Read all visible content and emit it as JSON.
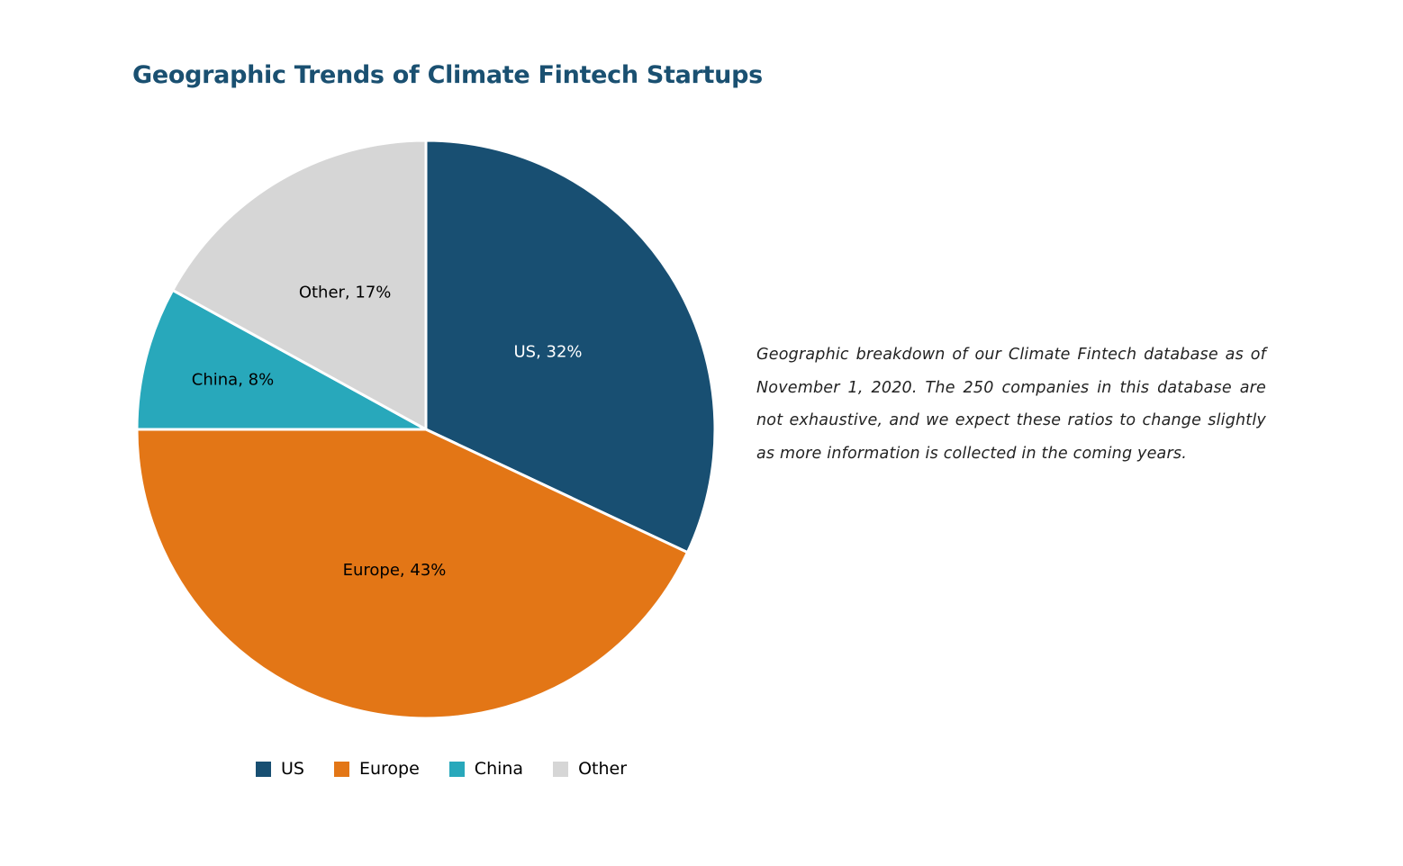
{
  "chart_data": {
    "type": "pie",
    "title": "Geographic Trends of Climate Fintech Startups",
    "categories": [
      "US",
      "Europe",
      "China",
      "Other"
    ],
    "values": [
      32,
      43,
      8,
      17
    ],
    "unit": "%",
    "slice_labels": [
      "US, 32%",
      "Europe, 43%",
      "China, 8%",
      "Other, 17%"
    ],
    "colors": [
      "#184f72",
      "#e37616",
      "#28a8bb",
      "#d6d6d6"
    ],
    "label_colors": [
      "#ffffff",
      "#000000",
      "#000000",
      "#000000"
    ],
    "start": "12 o'clock",
    "direction": "clockwise",
    "legend": {
      "position": "bottom",
      "entries": [
        "US",
        "Europe",
        "China",
        "Other"
      ]
    }
  },
  "caption": "Geographic breakdown of our Climate Fintech database as of November 1, 2020. The 250 companies in this database are not exhaustive, and we expect these ratios to change slightly as more information is collected in the coming years."
}
